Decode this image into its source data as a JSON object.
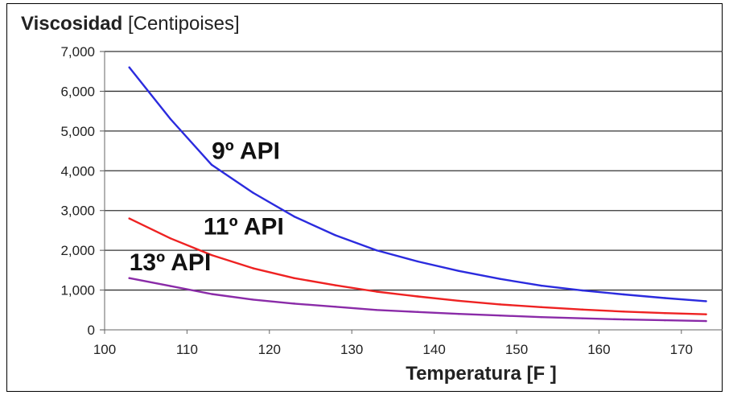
{
  "chart_data": {
    "type": "line",
    "title": "Viscosidad",
    "title_unit": "[Centipoises]",
    "xlabel_text": "Temperatura",
    "xlabel_unit": "[F ]",
    "xlim": [
      100,
      175
    ],
    "ylim": [
      0,
      7000
    ],
    "x_ticks": [
      100,
      110,
      120,
      130,
      140,
      150,
      160,
      170
    ],
    "y_ticks": [
      0,
      1000,
      2000,
      3000,
      4000,
      5000,
      6000,
      7000
    ],
    "y_tick_labels": [
      "0",
      "1,000",
      "2,000",
      "3,000",
      "4,000",
      "5,000",
      "6,000",
      "7,000"
    ],
    "grid": "horizontal",
    "series": [
      {
        "name": "9º API",
        "color": "#2b2bde",
        "label_at": [
          113,
          4300
        ],
        "points": [
          [
            103,
            6600
          ],
          [
            108,
            5300
          ],
          [
            113,
            4150
          ],
          [
            118,
            3450
          ],
          [
            123,
            2850
          ],
          [
            128,
            2380
          ],
          [
            133,
            2000
          ],
          [
            138,
            1720
          ],
          [
            143,
            1480
          ],
          [
            148,
            1280
          ],
          [
            153,
            1110
          ],
          [
            158,
            990
          ],
          [
            163,
            890
          ],
          [
            168,
            800
          ],
          [
            173,
            720
          ]
        ]
      },
      {
        "name": "11º API",
        "color": "#ee2222",
        "label_at": [
          112,
          2400
        ],
        "points": [
          [
            103,
            2800
          ],
          [
            108,
            2300
          ],
          [
            113,
            1880
          ],
          [
            118,
            1550
          ],
          [
            123,
            1300
          ],
          [
            128,
            1120
          ],
          [
            133,
            960
          ],
          [
            138,
            840
          ],
          [
            143,
            730
          ],
          [
            148,
            640
          ],
          [
            153,
            570
          ],
          [
            158,
            510
          ],
          [
            163,
            460
          ],
          [
            168,
            420
          ],
          [
            173,
            390
          ]
        ]
      },
      {
        "name": "13º API",
        "color": "#8a2ba8",
        "label_at": [
          103,
          1500
        ],
        "points": [
          [
            103,
            1300
          ],
          [
            108,
            1100
          ],
          [
            113,
            900
          ],
          [
            118,
            760
          ],
          [
            123,
            660
          ],
          [
            128,
            580
          ],
          [
            133,
            500
          ],
          [
            138,
            450
          ],
          [
            143,
            400
          ],
          [
            148,
            360
          ],
          [
            153,
            320
          ],
          [
            158,
            290
          ],
          [
            163,
            260
          ],
          [
            168,
            240
          ],
          [
            173,
            220
          ]
        ]
      }
    ]
  }
}
